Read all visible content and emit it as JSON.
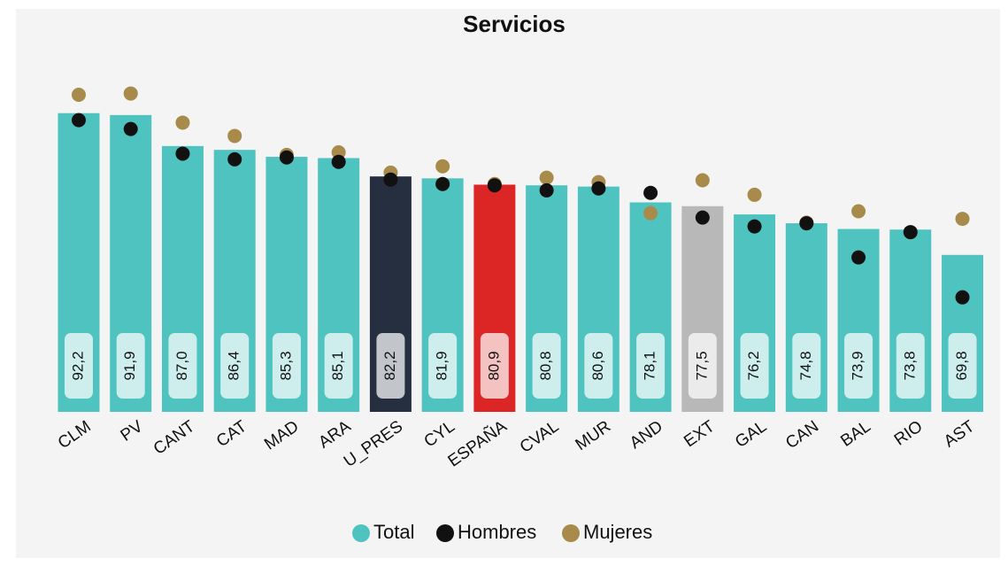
{
  "chart_data": {
    "type": "bar",
    "title": "Servicios",
    "categories": [
      "CLM",
      "PV",
      "CANT",
      "CAT",
      "MAD",
      "ARA",
      "U_PRES",
      "CYL",
      "ESPAÑA",
      "CVAL",
      "MUR",
      "AND",
      "EXT",
      "GAL",
      "CAN",
      "BAL",
      "RIO",
      "AST"
    ],
    "series": [
      {
        "name": "Total",
        "color": "#4fc3bf",
        "colors": [
          "#4fc3bf",
          "#4fc3bf",
          "#4fc3bf",
          "#4fc3bf",
          "#4fc3bf",
          "#4fc3bf",
          "#262f3f",
          "#4fc3bf",
          "#dc2626",
          "#4fc3bf",
          "#4fc3bf",
          "#4fc3bf",
          "#b8b8b8",
          "#4fc3bf",
          "#4fc3bf",
          "#4fc3bf",
          "#4fc3bf",
          "#4fc3bf"
        ],
        "values": [
          92.2,
          91.9,
          87.0,
          86.4,
          85.3,
          85.1,
          82.2,
          81.9,
          80.9,
          80.8,
          80.6,
          78.1,
          77.5,
          76.2,
          74.8,
          73.9,
          73.8,
          69.8
        ],
        "value_labels": [
          "92,2",
          "91,9",
          "87,0",
          "86,4",
          "85,3",
          "85,1",
          "82,2",
          "81,9",
          "80,9",
          "80,8",
          "80,6",
          "78,1",
          "77,5",
          "76,2",
          "74,8",
          "73,9",
          "73,8",
          "69,8"
        ]
      },
      {
        "name": "Hombres",
        "color": "#111111",
        "values": [
          91.1,
          89.7,
          85.8,
          84.9,
          85.2,
          84.5,
          81.7,
          81.0,
          80.8,
          80.0,
          80.3,
          79.6,
          75.7,
          74.3,
          74.8,
          69.4,
          73.4,
          63.1
        ]
      },
      {
        "name": "Mujeres",
        "color": "#a88a4a",
        "values": [
          95.1,
          95.3,
          90.7,
          88.6,
          85.6,
          86.0,
          82.8,
          83.8,
          81.0,
          82.0,
          81.3,
          76.4,
          81.6,
          79.3,
          74.9,
          76.7,
          73.4,
          75.5
        ]
      }
    ],
    "ylim": [
      45,
      100
    ],
    "legend": "bottom"
  }
}
